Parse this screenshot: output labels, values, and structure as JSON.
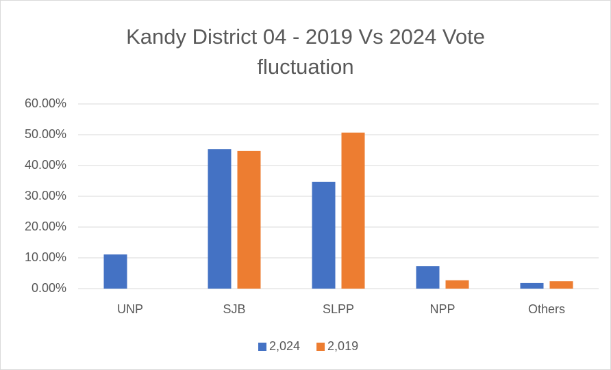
{
  "chart_data": {
    "type": "bar",
    "title": "Kandy District 04 - 2019 Vs 2024 Vote fluctuation",
    "categories": [
      "UNP",
      "SJB",
      "SLPP",
      "NPP",
      "Others"
    ],
    "series": [
      {
        "name": "2,024",
        "color": "#4472c4",
        "values": [
          11.1,
          45.3,
          34.7,
          7.3,
          1.8
        ]
      },
      {
        "name": "2,019",
        "color": "#ed7d31",
        "values": [
          0,
          44.7,
          50.7,
          2.7,
          2.4
        ]
      }
    ],
    "ylim": [
      0,
      60
    ],
    "yticks": [
      {
        "value": 0,
        "label": "0.00%"
      },
      {
        "value": 10,
        "label": "10.00%"
      },
      {
        "value": 20,
        "label": "20.00%"
      },
      {
        "value": 30,
        "label": "30.00%"
      },
      {
        "value": 40,
        "label": "40.00%"
      },
      {
        "value": 50,
        "label": "50.00%"
      },
      {
        "value": 60,
        "label": "60.00%"
      }
    ],
    "grid": true,
    "legend": "bottom"
  }
}
